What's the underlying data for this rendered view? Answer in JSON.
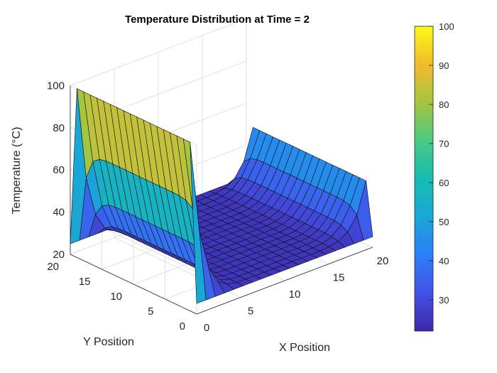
{
  "chart_data": {
    "type": "surface",
    "title": "Temperature Distribution at Time = 2",
    "xlabel": "X Position",
    "ylabel": "Y Position",
    "zlabel": "Temperature (°C)",
    "x_ticks": [
      "0",
      "5",
      "10",
      "15",
      "20"
    ],
    "y_ticks": [
      "0",
      "5",
      "10",
      "15",
      "20"
    ],
    "z_ticks": [
      "20",
      "40",
      "60",
      "80",
      "100"
    ],
    "xlim": [
      0,
      20
    ],
    "ylim": [
      0,
      20
    ],
    "zlim": [
      20,
      100
    ],
    "grid": true,
    "colormap": "parula",
    "grid_points": 20,
    "boundary_conditions": {
      "x0_edge": 100,
      "x20_edge": 50,
      "y0_edge": 25,
      "y20_edge": 25
    },
    "interior_temperature": 25,
    "colorbar": {
      "range": [
        22,
        100
      ],
      "ticks": [
        "30",
        "40",
        "50",
        "60",
        "70",
        "80",
        "90",
        "100"
      ]
    }
  }
}
